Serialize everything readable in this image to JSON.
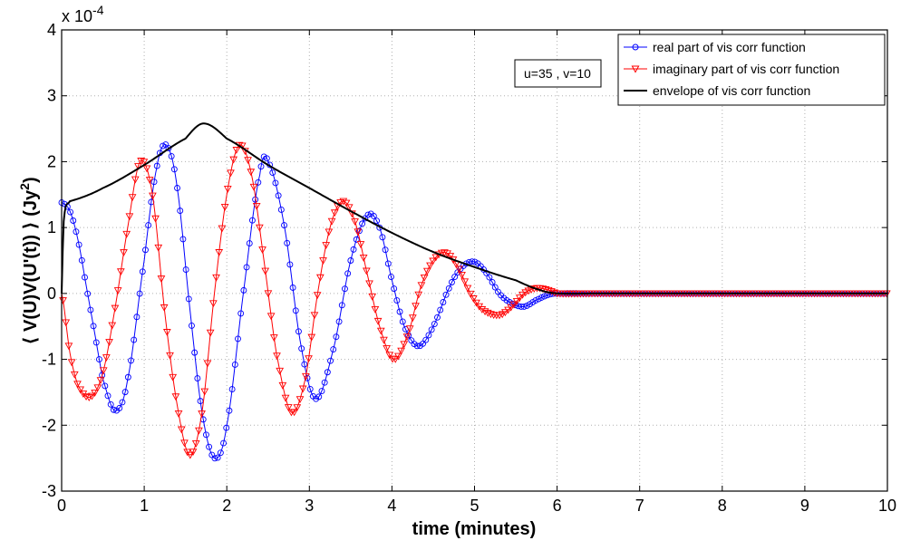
{
  "chart_data": {
    "type": "line",
    "xlabel": "time (minutes)",
    "ylabel": "⟨ V(U)V(U'(t)) ⟩ (Jy²)",
    "ylabel_main": "⟨ V(U)V(U'(t)) ⟩ (Jy",
    "ylabel_sup": "2",
    "ylabel_close": ")",
    "y_multiplier_base": "x 10",
    "y_multiplier_exp": "-4",
    "xlim": [
      0,
      10
    ],
    "ylim": [
      -3,
      4
    ],
    "xticks": [
      0,
      1,
      2,
      3,
      4,
      5,
      6,
      7,
      8,
      9,
      10
    ],
    "yticks": [
      -3,
      -2,
      -1,
      0,
      1,
      2,
      3,
      4
    ],
    "xtick_labels": [
      "0",
      "1",
      "2",
      "3",
      "4",
      "5",
      "6",
      "7",
      "8",
      "9",
      "10"
    ],
    "ytick_labels": [
      "-3",
      "-2",
      "-1",
      "0",
      "1",
      "2",
      "3",
      "4"
    ],
    "grid": true,
    "legend_position": "top-right",
    "annotation": "u=35 , v=10",
    "series": [
      {
        "name": "real part of vis corr function",
        "color": "#0000ff",
        "marker": "circle",
        "x": [
          0,
          0.1,
          0.2,
          0.3,
          0.4,
          0.5,
          0.65,
          0.8,
          1.0,
          1.15,
          1.27,
          1.4,
          1.55,
          1.7,
          1.85,
          2.0,
          2.2,
          2.4,
          2.5,
          2.7,
          2.9,
          3.08,
          3.3,
          3.5,
          3.7,
          3.85,
          4.0,
          4.15,
          4.32,
          4.5,
          4.7,
          4.85,
          5.0,
          5.15,
          5.3,
          5.45,
          5.6,
          5.75,
          5.9,
          6.0,
          6.5,
          7.0,
          7.5,
          8.0,
          8.5,
          9.0,
          9.5,
          10.0
        ],
        "y": [
          1.38,
          1.25,
          0.8,
          0.1,
          -0.6,
          -1.3,
          -1.78,
          -1.3,
          0.5,
          1.9,
          2.25,
          1.6,
          -0.2,
          -1.8,
          -2.5,
          -2.0,
          0.0,
          1.8,
          2.0,
          1.0,
          -0.8,
          -1.6,
          -0.8,
          0.5,
          1.18,
          1.0,
          0.2,
          -0.5,
          -0.8,
          -0.5,
          0.1,
          0.4,
          0.48,
          0.3,
          0.0,
          -0.15,
          -0.2,
          -0.1,
          -0.02,
          0.0,
          0.0,
          0.0,
          0.0,
          0.0,
          0.0,
          0.0,
          0.0,
          0.0
        ]
      },
      {
        "name": "imaginary part of vis corr function",
        "color": "#ff0000",
        "marker": "triangle-down",
        "x": [
          0,
          0.1,
          0.2,
          0.35,
          0.5,
          0.65,
          0.8,
          0.95,
          1.1,
          1.25,
          1.4,
          1.55,
          1.7,
          1.85,
          2.0,
          2.15,
          2.3,
          2.45,
          2.6,
          2.78,
          2.95,
          3.1,
          3.25,
          3.4,
          3.55,
          3.7,
          3.85,
          4.02,
          4.2,
          4.35,
          4.5,
          4.65,
          4.8,
          4.95,
          5.1,
          5.3,
          5.45,
          5.6,
          5.75,
          5.9,
          6.0,
          6.5,
          7.0,
          7.5,
          8.0,
          8.5,
          9.0,
          9.5,
          10.0
        ],
        "y": [
          0.0,
          -0.9,
          -1.4,
          -1.57,
          -1.2,
          -0.2,
          1.0,
          2.0,
          1.5,
          -0.3,
          -1.7,
          -2.45,
          -1.8,
          0.0,
          1.5,
          2.25,
          1.8,
          0.5,
          -0.9,
          -1.8,
          -1.3,
          0.0,
          1.0,
          1.4,
          1.1,
          0.3,
          -0.5,
          -1.0,
          -0.6,
          0.1,
          0.5,
          0.62,
          0.4,
          0.0,
          -0.25,
          -0.33,
          -0.2,
          0.0,
          0.08,
          0.05,
          0.0,
          0.0,
          0.0,
          0.0,
          0.0,
          0.0,
          0.0,
          0.0,
          0.0
        ]
      },
      {
        "name": "envelope of vis corr function",
        "color": "#000000",
        "marker": "none",
        "x": [
          0,
          0.02,
          0.05,
          0.1,
          0.5,
          1.0,
          1.5,
          1.72,
          2.0,
          2.5,
          3.0,
          3.5,
          4.0,
          4.5,
          5.0,
          5.5,
          5.8,
          6.0,
          6.5,
          7.0,
          8.0,
          9.0,
          10.0
        ],
        "y": [
          0.0,
          1.0,
          1.32,
          1.4,
          1.6,
          1.95,
          2.35,
          2.58,
          2.35,
          1.95,
          1.6,
          1.25,
          0.92,
          0.63,
          0.4,
          0.2,
          0.05,
          0.0,
          0.0,
          0.0,
          0.0,
          0.0,
          0.0
        ]
      }
    ]
  }
}
